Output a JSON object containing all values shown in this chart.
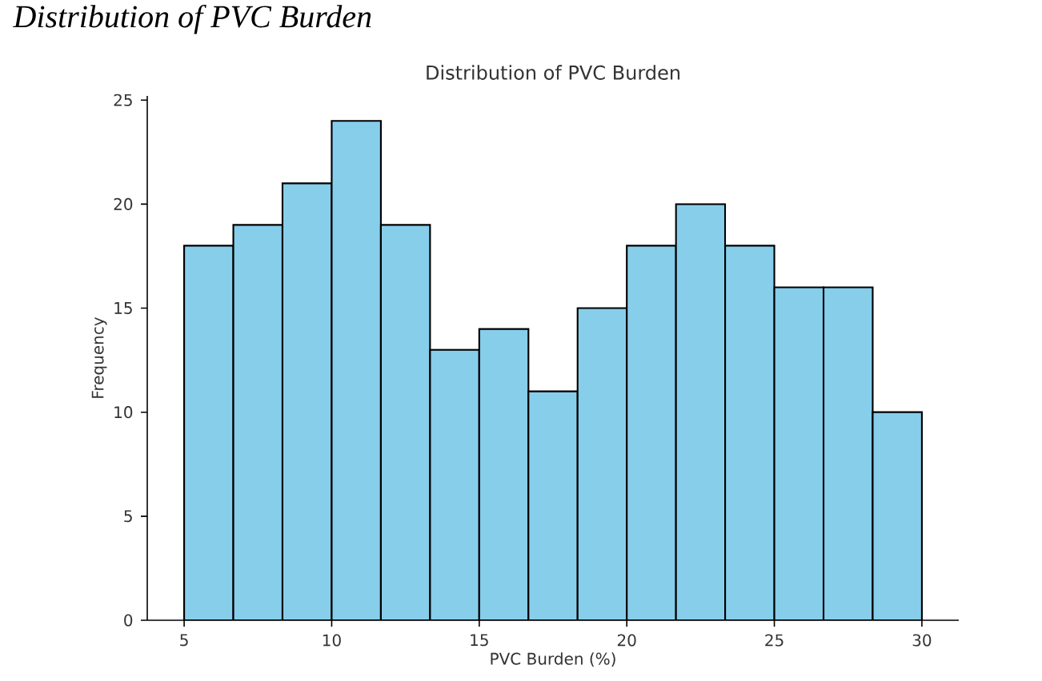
{
  "chart_data": {
    "type": "histogram",
    "title": "Distribution of PVC Burden",
    "xlabel": "PVC Burden (%)",
    "ylabel": "Frequency",
    "annotations": [
      "Distribution of PVC Burden"
    ],
    "bins": [
      5,
      6.667,
      8.333,
      10,
      11.667,
      13.333,
      15,
      16.667,
      18.333,
      20,
      21.667,
      23.333,
      25,
      26.667,
      28.333,
      30
    ],
    "values": [
      18,
      19,
      21,
      24,
      19,
      13,
      14,
      11,
      15,
      18,
      20,
      18,
      16,
      16,
      10
    ],
    "color": "#87ceeb",
    "xlim": [
      3.75,
      31.25
    ],
    "ylim": [
      0,
      25.2
    ],
    "xticks": [
      5,
      10,
      15,
      20,
      25,
      30
    ],
    "yticks": [
      0,
      5,
      10,
      15,
      20,
      25
    ],
    "grid": false
  }
}
